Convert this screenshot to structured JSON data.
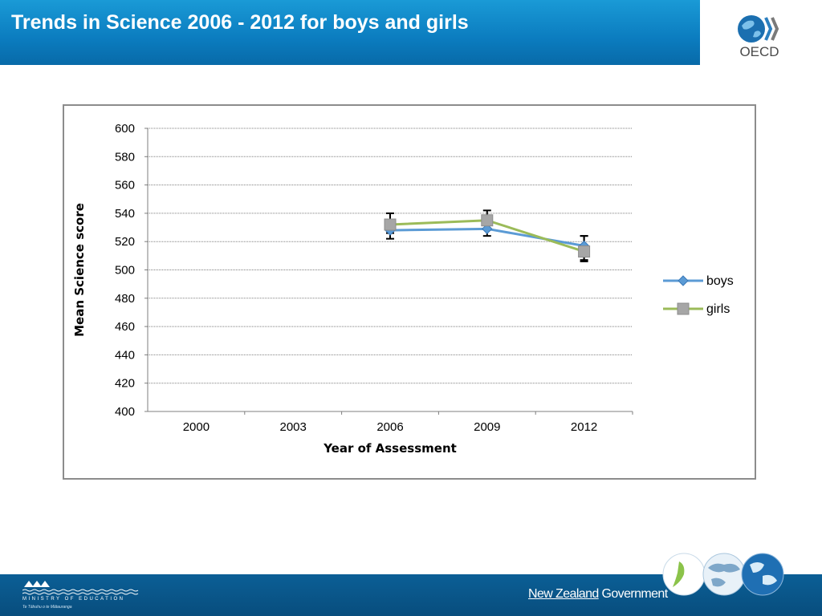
{
  "header": {
    "title": "Trends in Science 2006 - 2012 for boys and girls"
  },
  "logos": {
    "oecd": "OECD"
  },
  "footer": {
    "ministry_line1": "MINISTRY OF EDUCATION",
    "ministry_line2": "Te Tāhuhu o te Mātauranga",
    "government_part1": "New Zealand",
    "government_part2": " Government"
  },
  "chart_data": {
    "type": "line",
    "title": "",
    "xlabel": "Year of Assessment",
    "ylabel": "Mean Science score",
    "categories": [
      "2000",
      "2003",
      "2006",
      "2009",
      "2012"
    ],
    "ylim": [
      400,
      600
    ],
    "yticks": [
      600,
      580,
      560,
      540,
      520,
      500,
      480,
      460,
      440,
      420,
      400
    ],
    "grid": true,
    "legend_position": "right",
    "series": [
      {
        "name": "boys",
        "color": "#5b9bd5",
        "marker": "diamond",
        "values": [
          null,
          null,
          528,
          529,
          517
        ],
        "error_low": [
          null,
          null,
          522,
          524,
          507
        ],
        "error_high": [
          null,
          null,
          535,
          534,
          524
        ]
      },
      {
        "name": "girls",
        "color": "#9bbb59",
        "marker": "square",
        "values": [
          null,
          null,
          532,
          535,
          513
        ],
        "error_low": [
          null,
          null,
          526,
          529,
          506
        ],
        "error_high": [
          null,
          null,
          540,
          542,
          524
        ]
      }
    ]
  }
}
